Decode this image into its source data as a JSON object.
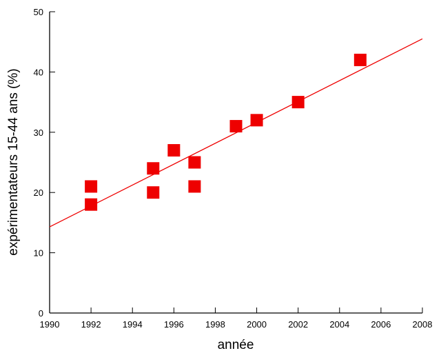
{
  "chart_data": {
    "type": "scatter",
    "title": "",
    "xlabel": "année",
    "ylabel": "expérimentateurs 15-44 ans (%)",
    "xlim": [
      1990,
      2008
    ],
    "ylim": [
      0,
      50
    ],
    "xticks": [
      1990,
      1992,
      1994,
      1996,
      1998,
      2000,
      2002,
      2004,
      2006,
      2008
    ],
    "yticks": [
      0,
      10,
      20,
      30,
      40,
      50
    ],
    "grid": false,
    "marker": "square",
    "color": "#ee0000",
    "points": [
      {
        "x": 1992,
        "y": 21
      },
      {
        "x": 1992,
        "y": 18
      },
      {
        "x": 1995,
        "y": 24
      },
      {
        "x": 1995,
        "y": 20
      },
      {
        "x": 1996,
        "y": 27
      },
      {
        "x": 1997,
        "y": 25
      },
      {
        "x": 1997,
        "y": 21
      },
      {
        "x": 1999,
        "y": 31
      },
      {
        "x": 2000,
        "y": 32
      },
      {
        "x": 2002,
        "y": 35
      },
      {
        "x": 2005,
        "y": 42
      }
    ],
    "trendline": {
      "x": [
        1990,
        2008
      ],
      "y": [
        14.3,
        45.5
      ]
    }
  }
}
